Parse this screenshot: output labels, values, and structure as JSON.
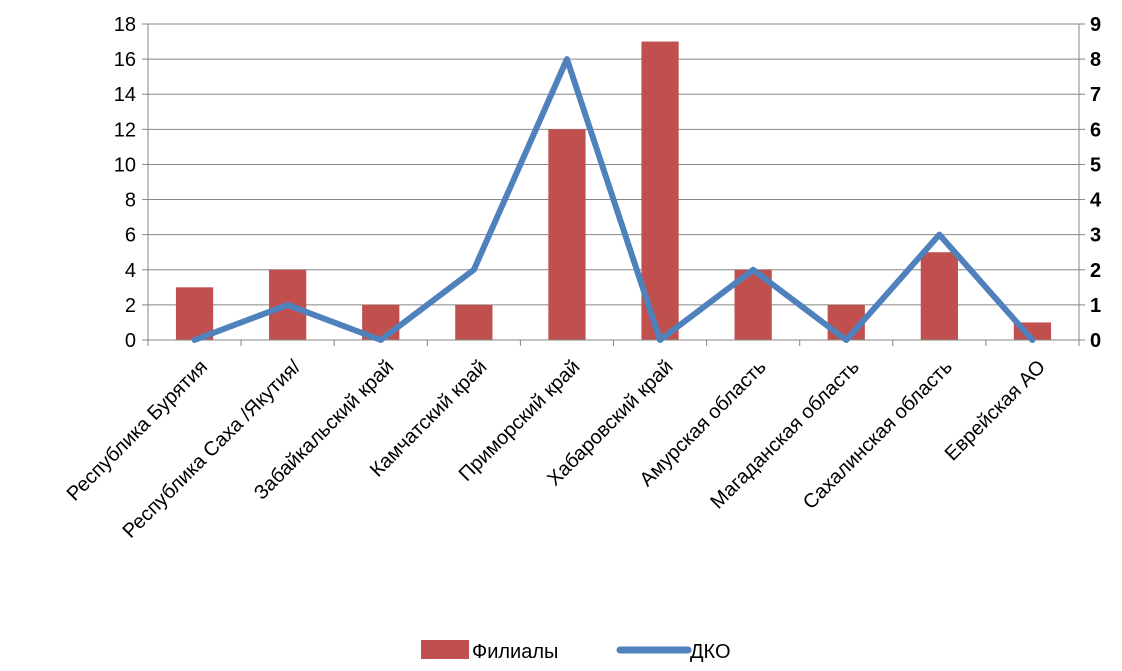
{
  "chart_data": {
    "type": "bar+line",
    "categories": [
      "Республика Бурятия",
      "Республика Саха /Якутия/",
      "Забайкальский край",
      "Камчатский край",
      "Приморский край",
      "Хабаровский край",
      "Амурская область",
      "Магаданская область",
      "Сахалинская область",
      "Еврейская АО"
    ],
    "series": [
      {
        "name": "Филиалы",
        "kind": "bar",
        "axis": "left",
        "color": "#c0504d",
        "values": [
          3,
          4,
          2,
          2,
          12,
          17,
          4,
          2,
          5,
          1
        ]
      },
      {
        "name": "ДКО",
        "kind": "line",
        "axis": "right",
        "color": "#4f81bd",
        "values": [
          0,
          1,
          0,
          2,
          8,
          0,
          2,
          0,
          3,
          0
        ]
      }
    ],
    "y_left": {
      "min": 0,
      "max": 18,
      "step": 2,
      "ticks": [
        "0",
        "2",
        "4",
        "6",
        "8",
        "10",
        "12",
        "14",
        "16",
        "18"
      ]
    },
    "y_right": {
      "min": 0,
      "max": 9,
      "step": 1,
      "ticks": [
        "0",
        "1",
        "2",
        "3",
        "4",
        "5",
        "6",
        "7",
        "8",
        "9"
      ]
    },
    "grid": true,
    "legend_position": "bottom"
  }
}
